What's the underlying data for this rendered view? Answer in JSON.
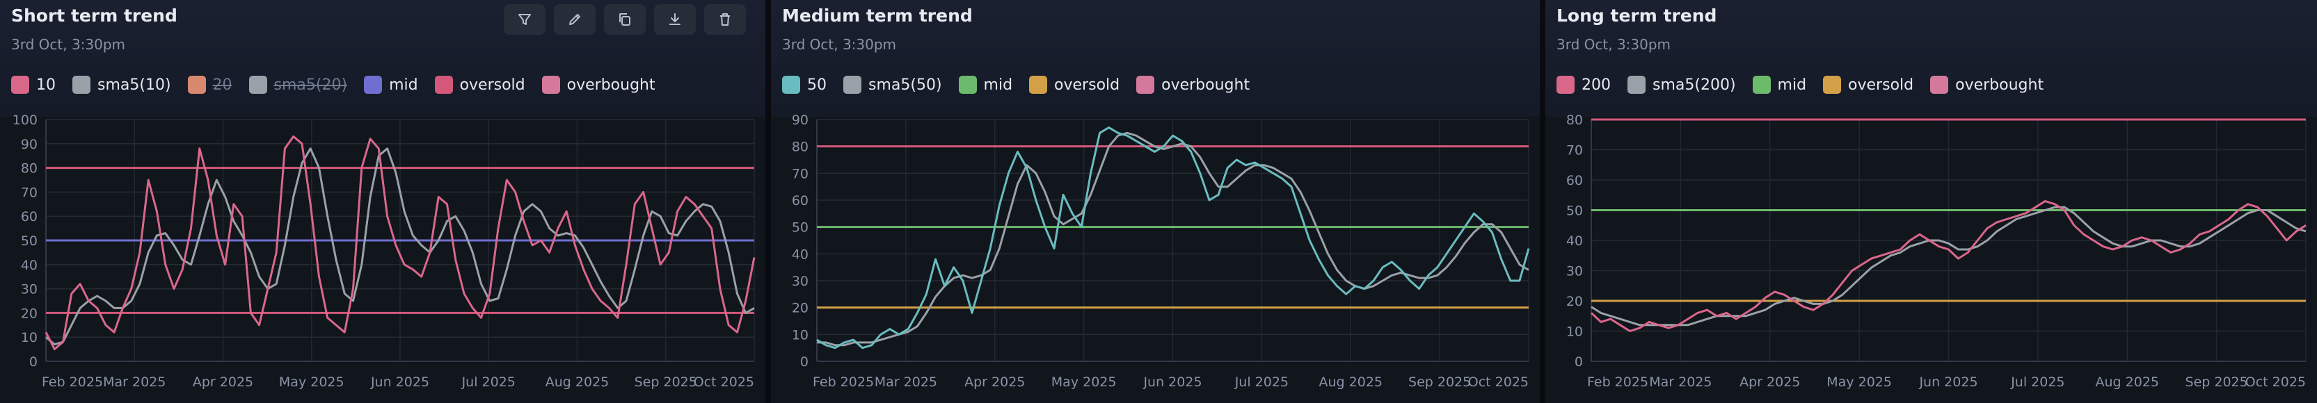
{
  "toolbar": {
    "icons": [
      "filter-icon",
      "pen-icon",
      "copy-icon",
      "download-icon",
      "trash-icon"
    ]
  },
  "panels": [
    {
      "title": "Short term trend",
      "subtitle": "3rd Oct, 3:30pm",
      "legend": [
        {
          "label": "10",
          "color": "#d9678a",
          "active": true
        },
        {
          "label": "sma5(10)",
          "color": "#9aa1a8",
          "active": true
        },
        {
          "label": "20",
          "color": "#d8896d",
          "active": false
        },
        {
          "label": "sma5(20)",
          "color": "#9aa1a8",
          "active": false
        },
        {
          "label": "mid",
          "color": "#6f6fd2",
          "active": true
        },
        {
          "label": "oversold",
          "color": "#d4587b",
          "active": true
        },
        {
          "label": "overbought",
          "color": "#d4799b",
          "active": true
        }
      ]
    },
    {
      "title": "Medium term trend",
      "subtitle": "3rd Oct, 3:30pm",
      "legend": [
        {
          "label": "50",
          "color": "#69bcbf",
          "active": true
        },
        {
          "label": "sma5(50)",
          "color": "#9aa1a8",
          "active": true
        },
        {
          "label": "mid",
          "color": "#6cba6c",
          "active": true
        },
        {
          "label": "oversold",
          "color": "#d4a047",
          "active": true
        },
        {
          "label": "overbought",
          "color": "#d4799b",
          "active": true
        }
      ]
    },
    {
      "title": "Long term trend",
      "subtitle": "3rd Oct, 3:30pm",
      "legend": [
        {
          "label": "200",
          "color": "#d9678a",
          "active": true
        },
        {
          "label": "sma5(200)",
          "color": "#9aa1a8",
          "active": true
        },
        {
          "label": "mid",
          "color": "#6cba6c",
          "active": true
        },
        {
          "label": "oversold",
          "color": "#d4a047",
          "active": true
        },
        {
          "label": "overbought",
          "color": "#d4799b",
          "active": true
        }
      ]
    }
  ],
  "chart_data": [
    {
      "type": "line",
      "x_labels": [
        "Feb 2025",
        "Mar 2025",
        "Apr 2025",
        "May 2025",
        "Jun 2025",
        "Jul 2025",
        "Aug 2025",
        "Sep 2025",
        "Oct 2025"
      ],
      "ylim": [
        0,
        100
      ],
      "yticks": [
        0,
        10,
        20,
        30,
        40,
        50,
        60,
        70,
        80,
        90,
        100
      ],
      "hlines": {
        "mid": 50,
        "oversold": 20,
        "overbought": 80
      },
      "colors": {
        "mid": "#6f6fd2",
        "oversold": "#d4587b",
        "overbought": "#d4587b"
      },
      "grid": true,
      "series": [
        {
          "name": "10",
          "color": "#d9678a",
          "width": 3,
          "values": [
            12,
            5,
            8,
            28,
            32,
            25,
            22,
            15,
            12,
            22,
            30,
            45,
            75,
            62,
            40,
            30,
            38,
            55,
            88,
            75,
            52,
            40,
            65,
            60,
            20,
            15,
            30,
            45,
            88,
            93,
            90,
            65,
            35,
            18,
            15,
            12,
            30,
            80,
            92,
            88,
            60,
            48,
            40,
            38,
            35,
            45,
            68,
            65,
            42,
            28,
            22,
            18,
            28,
            55,
            75,
            70,
            58,
            48,
            50,
            45,
            55,
            62,
            48,
            38,
            30,
            25,
            22,
            18,
            40,
            65,
            70,
            55,
            40,
            45,
            62,
            68,
            65,
            60,
            55,
            30,
            15,
            12,
            25,
            43
          ]
        },
        {
          "name": "sma5(10)",
          "color": "#9aa1a8",
          "width": 3,
          "values": [
            10,
            7,
            8,
            15,
            22,
            25,
            27,
            25,
            22,
            22,
            25,
            32,
            45,
            52,
            53,
            48,
            42,
            40,
            52,
            65,
            75,
            68,
            58,
            52,
            45,
            35,
            30,
            32,
            48,
            68,
            82,
            88,
            80,
            60,
            42,
            28,
            25,
            40,
            68,
            85,
            88,
            78,
            62,
            52,
            48,
            45,
            50,
            58,
            60,
            54,
            45,
            32,
            25,
            26,
            38,
            52,
            62,
            65,
            62,
            55,
            52,
            53,
            52,
            47,
            40,
            33,
            27,
            22,
            25,
            38,
            52,
            62,
            60,
            53,
            52,
            58,
            62,
            65,
            64,
            58,
            45,
            28,
            20,
            22
          ]
        }
      ]
    },
    {
      "type": "line",
      "x_labels": [
        "Feb 2025",
        "Mar 2025",
        "Apr 2025",
        "May 2025",
        "Jun 2025",
        "Jul 2025",
        "Aug 2025",
        "Sep 2025",
        "Oct 2025"
      ],
      "ylim": [
        0,
        90
      ],
      "yticks": [
        0,
        10,
        20,
        30,
        40,
        50,
        60,
        70,
        80,
        90
      ],
      "hlines": {
        "mid": 50,
        "oversold": 20,
        "overbought": 80
      },
      "colors": {
        "mid": "#6cba6c",
        "oversold": "#d4a047",
        "overbought": "#d4587b"
      },
      "grid": true,
      "series": [
        {
          "name": "50",
          "color": "#69bcbf",
          "width": 3,
          "values": [
            8,
            6,
            5,
            7,
            8,
            5,
            6,
            10,
            12,
            10,
            12,
            18,
            25,
            38,
            28,
            35,
            30,
            18,
            30,
            42,
            58,
            70,
            78,
            72,
            60,
            50,
            42,
            62,
            55,
            50,
            70,
            85,
            87,
            85,
            84,
            82,
            80,
            78,
            80,
            84,
            82,
            78,
            70,
            60,
            62,
            72,
            75,
            73,
            74,
            72,
            70,
            68,
            65,
            55,
            45,
            38,
            32,
            28,
            25,
            28,
            27,
            30,
            35,
            37,
            34,
            30,
            27,
            32,
            35,
            40,
            45,
            50,
            55,
            52,
            48,
            38,
            30,
            30,
            42
          ]
        },
        {
          "name": "sma5(50)",
          "color": "#9aa1a8",
          "width": 3,
          "values": [
            7,
            7,
            6,
            6,
            7,
            7,
            7,
            8,
            9,
            10,
            11,
            13,
            18,
            24,
            28,
            31,
            32,
            31,
            32,
            34,
            42,
            54,
            66,
            73,
            70,
            63,
            54,
            51,
            53,
            55,
            62,
            71,
            80,
            84,
            85,
            84,
            82,
            80,
            79,
            80,
            81,
            80,
            76,
            70,
            65,
            65,
            68,
            71,
            73,
            73,
            72,
            70,
            68,
            63,
            56,
            48,
            40,
            34,
            30,
            28,
            27,
            28,
            30,
            32,
            33,
            32,
            31,
            31,
            32,
            35,
            39,
            44,
            48,
            51,
            51,
            48,
            42,
            36,
            34
          ]
        }
      ]
    },
    {
      "type": "line",
      "x_labels": [
        "Feb 2025",
        "Mar 2025",
        "Apr 2025",
        "May 2025",
        "Jun 2025",
        "Jul 2025",
        "Aug 2025",
        "Sep 2025",
        "Oct 2025"
      ],
      "ylim": [
        0,
        80
      ],
      "yticks": [
        0,
        10,
        20,
        30,
        40,
        50,
        60,
        70,
        80
      ],
      "hlines": {
        "mid": 50,
        "oversold": 20,
        "overbought": 80
      },
      "colors": {
        "mid": "#6cba6c",
        "oversold": "#d4a047",
        "overbought": "#d4587b"
      },
      "grid": true,
      "series": [
        {
          "name": "200",
          "color": "#d9678a",
          "width": 3,
          "values": [
            16,
            13,
            14,
            12,
            10,
            11,
            13,
            12,
            11,
            12,
            14,
            16,
            17,
            15,
            16,
            14,
            16,
            18,
            21,
            23,
            22,
            20,
            18,
            17,
            19,
            22,
            26,
            30,
            32,
            34,
            35,
            36,
            37,
            40,
            42,
            40,
            38,
            37,
            34,
            36,
            40,
            44,
            46,
            47,
            48,
            49,
            51,
            53,
            52,
            50,
            45,
            42,
            40,
            38,
            37,
            38,
            40,
            41,
            40,
            38,
            36,
            37,
            39,
            42,
            43,
            45,
            47,
            50,
            52,
            51,
            48,
            44,
            40,
            43,
            45
          ]
        },
        {
          "name": "sma5(200)",
          "color": "#9aa1a8",
          "width": 3,
          "values": [
            18,
            16,
            15,
            14,
            13,
            12,
            12,
            12,
            12,
            12,
            12,
            13,
            14,
            15,
            15,
            15,
            15,
            16,
            17,
            19,
            20,
            21,
            20,
            19,
            19,
            20,
            22,
            25,
            28,
            31,
            33,
            35,
            36,
            38,
            39,
            40,
            40,
            39,
            37,
            37,
            38,
            40,
            43,
            45,
            47,
            48,
            49,
            50,
            51,
            51,
            49,
            46,
            43,
            41,
            39,
            38,
            38,
            39,
            40,
            40,
            39,
            38,
            38,
            39,
            41,
            43,
            45,
            47,
            49,
            50,
            50,
            48,
            46,
            44,
            43
          ]
        }
      ]
    }
  ]
}
